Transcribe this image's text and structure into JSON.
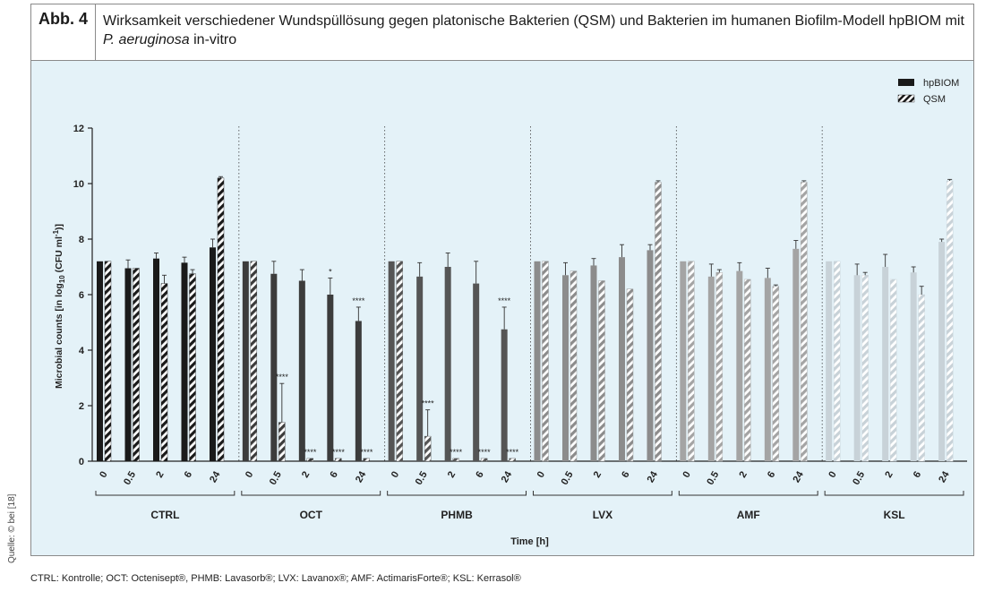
{
  "figure": {
    "label": "Abb. 4",
    "title_part1": "Wirksamkeit verschiedener Wundspüllösung gegen platonische Bakterien (QSM) und Bakterien im humanen Biofilm-Modell hpBIOM mit ",
    "title_italic": "P. aeruginosa",
    "title_part2": " in-vitro"
  },
  "source_note": "Quelle: © bei [18]",
  "footnote": "CTRL: Kontrolle; OCT: Octenisept®, PHMB: Lavasorb®; LVX: Lavanox®; AMF: ActimarisForte®; KSL: Kerrasol®",
  "colors": {
    "background": "#e4f2f8",
    "CTRL": "#1a1a1a",
    "OCT": "#3c3c3c",
    "PHMB": "#555555",
    "LVX": "#8c8c8c",
    "AMF": "#a4a4a4",
    "KSL": "#c8d2d8"
  },
  "chart_data": {
    "type": "bar",
    "title": "",
    "ylabel_main": "Microbial counts [in log",
    "ylabel_sub": "10",
    "ylabel_rest": " (CFU ml",
    "ylabel_sup": "-1",
    "ylabel_end": ")]",
    "xlabel": "Time [h]",
    "ylim": [
      0,
      12
    ],
    "yticks": [
      0,
      2,
      4,
      6,
      8,
      10,
      12
    ],
    "grid": false,
    "legend_position": "top-right",
    "series": [
      {
        "name": "hpBIOM",
        "pattern": "solid"
      },
      {
        "name": "QSM",
        "pattern": "hatched"
      }
    ],
    "time_labels": [
      "0",
      "0.5",
      "2",
      "6",
      "24"
    ],
    "groups": [
      {
        "name": "CTRL",
        "hpBIOM": [
          7.2,
          6.95,
          7.3,
          7.15,
          7.7
        ],
        "hpBIOM_err": [
          0,
          0.3,
          0.2,
          0.2,
          0.3
        ],
        "QSM": [
          7.2,
          6.95,
          6.4,
          6.75,
          10.2
        ],
        "QSM_err": [
          0,
          0,
          0.3,
          0.15,
          0.05
        ],
        "hpBIOM_sig": [
          "",
          "",
          "",
          "",
          ""
        ],
        "QSM_sig": [
          "",
          "",
          "",
          "",
          ""
        ]
      },
      {
        "name": "OCT",
        "hpBIOM": [
          7.2,
          6.75,
          6.5,
          6.0,
          5.05
        ],
        "hpBIOM_err": [
          0,
          0.45,
          0.4,
          0.6,
          0.5
        ],
        "QSM": [
          7.2,
          1.4,
          0.1,
          0.1,
          0.1
        ],
        "QSM_err": [
          0,
          1.4,
          0,
          0,
          0
        ],
        "hpBIOM_sig": [
          "",
          "",
          "",
          "*",
          "****"
        ],
        "QSM_sig": [
          "",
          "****",
          "****",
          "****",
          "****"
        ]
      },
      {
        "name": "PHMB",
        "hpBIOM": [
          7.2,
          6.65,
          7.0,
          6.4,
          4.75
        ],
        "hpBIOM_err": [
          0,
          0.5,
          0.5,
          0.8,
          0.8
        ],
        "QSM": [
          7.2,
          0.9,
          0.1,
          0.1,
          0.1
        ],
        "QSM_err": [
          0,
          0.95,
          0,
          0,
          0
        ],
        "hpBIOM_sig": [
          "",
          "",
          "",
          "",
          "****"
        ],
        "QSM_sig": [
          "",
          "****",
          "****",
          "****",
          "****"
        ]
      },
      {
        "name": "LVX",
        "hpBIOM": [
          7.2,
          6.7,
          7.05,
          7.35,
          7.6
        ],
        "hpBIOM_err": [
          0,
          0.45,
          0.25,
          0.45,
          0.2
        ],
        "QSM": [
          7.2,
          6.85,
          6.5,
          6.2,
          10.05
        ],
        "QSM_err": [
          0,
          0,
          0,
          0,
          0.05
        ],
        "hpBIOM_sig": [
          "",
          "",
          "",
          "",
          ""
        ],
        "QSM_sig": [
          "",
          "",
          "",
          "",
          ""
        ]
      },
      {
        "name": "AMF",
        "hpBIOM": [
          7.2,
          6.65,
          6.85,
          6.6,
          7.65
        ],
        "hpBIOM_err": [
          0,
          0.45,
          0.3,
          0.35,
          0.3
        ],
        "QSM": [
          7.2,
          6.8,
          6.55,
          6.3,
          10.05
        ],
        "QSM_err": [
          0,
          0.1,
          0,
          0.05,
          0.05
        ],
        "hpBIOM_sig": [
          "",
          "",
          "",
          "",
          ""
        ],
        "QSM_sig": [
          "",
          "",
          "",
          "",
          ""
        ]
      },
      {
        "name": "KSL",
        "hpBIOM": [
          7.2,
          6.7,
          7.0,
          6.8,
          7.9
        ],
        "hpBIOM_err": [
          0,
          0.4,
          0.45,
          0.2,
          0.1
        ],
        "QSM": [
          7.2,
          6.7,
          6.55,
          6.0,
          10.1
        ],
        "QSM_err": [
          0,
          0.1,
          0,
          0.3,
          0.05
        ],
        "hpBIOM_sig": [
          "",
          "",
          "",
          "",
          ""
        ],
        "QSM_sig": [
          "",
          "",
          "",
          "",
          ""
        ]
      }
    ]
  }
}
